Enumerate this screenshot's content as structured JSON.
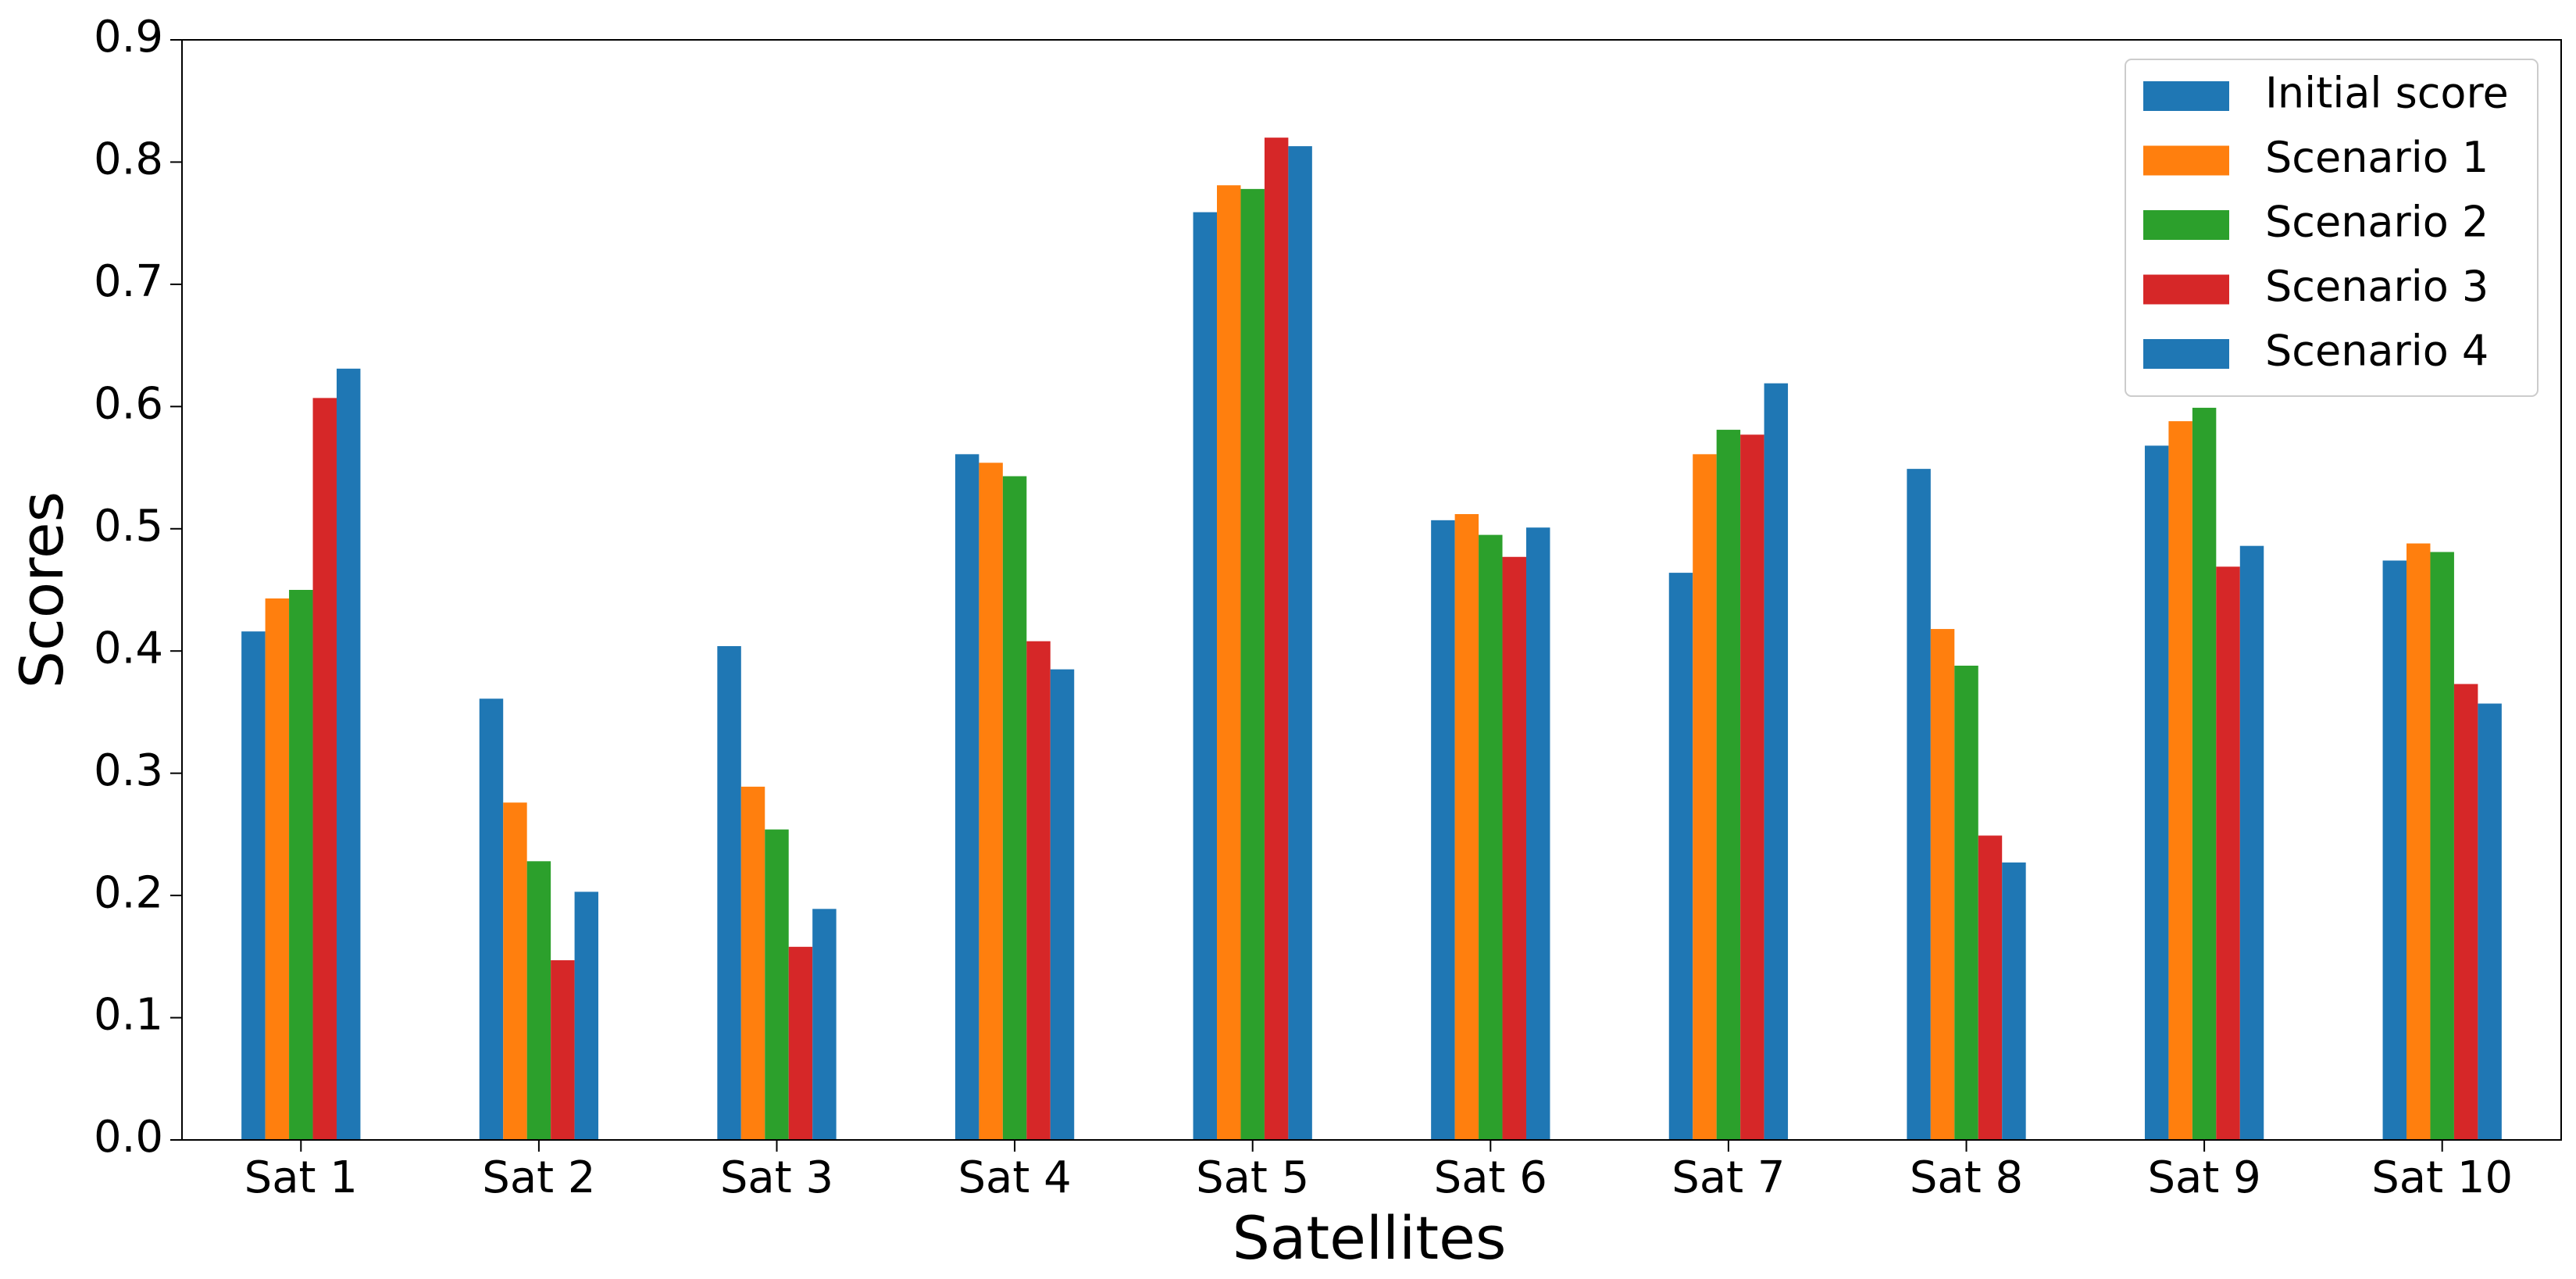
{
  "chart_data": {
    "type": "bar",
    "xlabel": "Satellites",
    "ylabel": "Scores",
    "categories": [
      "Sat 1",
      "Sat 2",
      "Sat 3",
      "Sat 4",
      "Sat 5",
      "Sat 6",
      "Sat 7",
      "Sat 8",
      "Sat 9",
      "Sat 10"
    ],
    "series": [
      {
        "name": "Initial score",
        "color": "#1f77b4",
        "values": [
          0.416,
          0.361,
          0.404,
          0.561,
          0.759,
          0.507,
          0.464,
          0.549,
          0.568,
          0.474
        ]
      },
      {
        "name": "Scenario 1",
        "color": "#ff7f0e",
        "values": [
          0.443,
          0.276,
          0.289,
          0.554,
          0.781,
          0.512,
          0.561,
          0.418,
          0.588,
          0.488
        ]
      },
      {
        "name": "Scenario 2",
        "color": "#2ca02c",
        "values": [
          0.45,
          0.228,
          0.254,
          0.543,
          0.778,
          0.495,
          0.581,
          0.388,
          0.599,
          0.481
        ]
      },
      {
        "name": "Scenario 3",
        "color": "#d62728",
        "values": [
          0.607,
          0.147,
          0.158,
          0.408,
          0.82,
          0.477,
          0.577,
          0.249,
          0.469,
          0.373
        ]
      },
      {
        "name": "Scenario 4",
        "color": "#1f77b4",
        "values": [
          0.631,
          0.203,
          0.189,
          0.385,
          0.813,
          0.501,
          0.619,
          0.227,
          0.486,
          0.357
        ]
      }
    ],
    "ylim": [
      0,
      0.9
    ],
    "yticks": [
      {
        "value": 0,
        "label": "0.0"
      },
      0.1,
      0.2,
      0.3,
      0.4,
      0.5,
      0.6,
      0.7,
      0.8,
      0.9
    ],
    "legend": "upper right",
    "grid": false
  }
}
